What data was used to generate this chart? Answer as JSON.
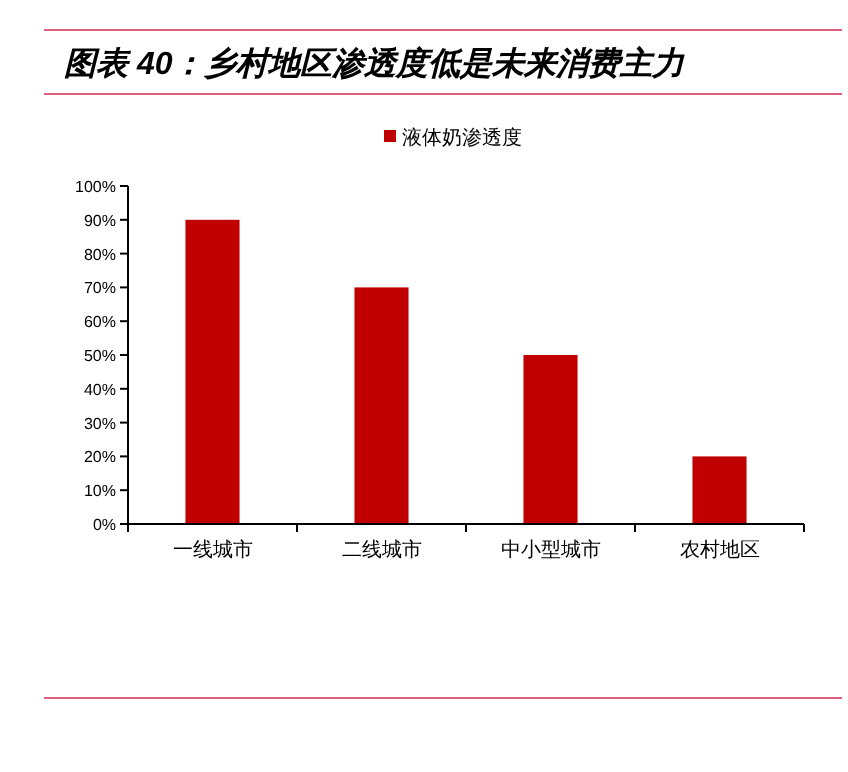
{
  "chart_data": {
    "type": "bar",
    "title": "图表 40：乡村地区渗透度低是未来消费主力",
    "categories": [
      "一线城市",
      "二线城市",
      "中小型城市",
      "农村地区"
    ],
    "series": [
      {
        "name": "液体奶渗透度",
        "color": "#c00000",
        "values": [
          90,
          70,
          50,
          20
        ]
      }
    ],
    "ylim": [
      0,
      100
    ],
    "yticks": [
      {
        "value": 0,
        "label": "0%"
      },
      {
        "value": 10,
        "label": "10%"
      },
      {
        "value": 20,
        "label": "20%"
      },
      {
        "value": 30,
        "label": "30%"
      },
      {
        "value": 40,
        "label": "40%"
      },
      {
        "value": 50,
        "label": "50%"
      },
      {
        "value": 60,
        "label": "60%"
      },
      {
        "value": 70,
        "label": "70%"
      },
      {
        "value": 80,
        "label": "80%"
      },
      {
        "value": 90,
        "label": "90%"
      },
      {
        "value": 100,
        "label": "100%"
      }
    ],
    "legend": "top",
    "grid": false
  }
}
